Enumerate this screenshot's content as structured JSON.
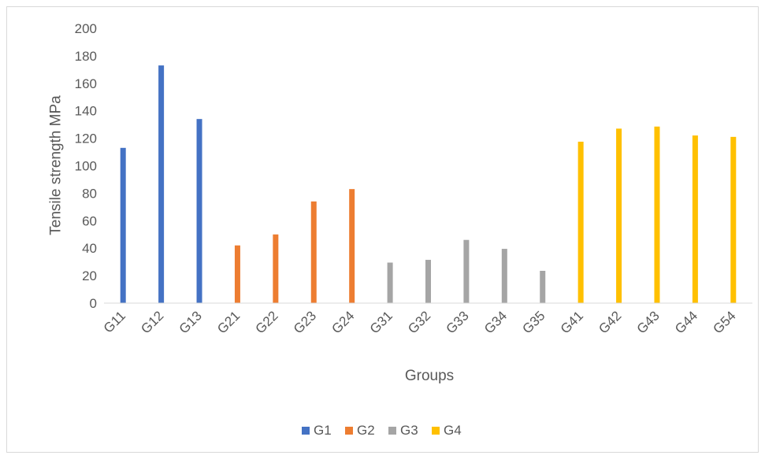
{
  "chart_data": {
    "type": "bar",
    "title": "",
    "xlabel": "Groups",
    "ylabel": "Tensile strength MPa",
    "ylim": [
      0,
      200
    ],
    "yticks": [
      0,
      20,
      40,
      60,
      80,
      100,
      120,
      140,
      160,
      180,
      200
    ],
    "grid": false,
    "legend_position": "bottom",
    "categories": [
      "G11",
      "G12",
      "G13",
      "G21",
      "G22",
      "G23",
      "G24",
      "G31",
      "G32",
      "G33",
      "G34",
      "G35",
      "G41",
      "G42",
      "G43",
      "G44",
      "G54"
    ],
    "series": [
      {
        "name": "G1",
        "color": "#4472c4",
        "values": [
          113,
          173,
          134,
          null,
          null,
          null,
          null,
          null,
          null,
          null,
          null,
          null,
          null,
          null,
          null,
          null,
          null
        ]
      },
      {
        "name": "G2",
        "color": "#ed7d31",
        "values": [
          null,
          null,
          null,
          42,
          50,
          74,
          83,
          null,
          null,
          null,
          null,
          null,
          null,
          null,
          null,
          null,
          null
        ]
      },
      {
        "name": "G3",
        "color": "#a5a5a5",
        "values": [
          null,
          null,
          null,
          null,
          null,
          null,
          null,
          29.5,
          31.5,
          46,
          39.5,
          23.5,
          null,
          null,
          null,
          null,
          null
        ]
      },
      {
        "name": "G4",
        "color": "#ffc000",
        "values": [
          null,
          null,
          null,
          null,
          null,
          null,
          null,
          null,
          null,
          null,
          null,
          null,
          117.5,
          127,
          128.5,
          122,
          121
        ]
      }
    ]
  }
}
